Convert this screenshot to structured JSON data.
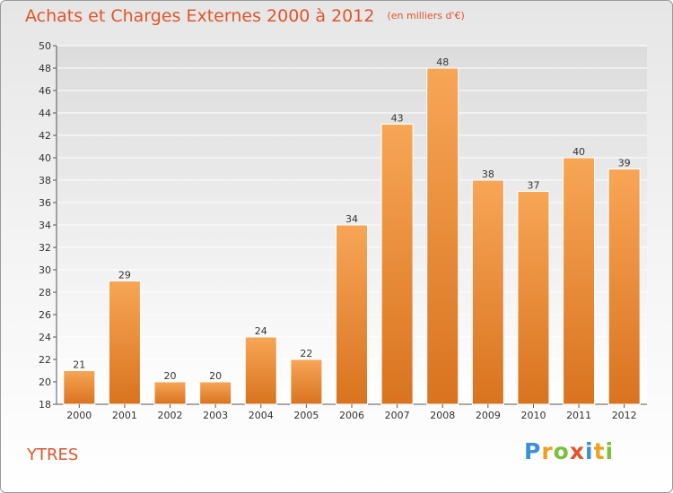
{
  "header": {
    "title": "Achats et Charges Externes 2000 à 2012",
    "unit": "(en milliers d'€)"
  },
  "footer": {
    "town": "YTRES",
    "logo_text": "Proxiti",
    "logo_letters": [
      {
        "ch": "P",
        "color": "#3a8fd6"
      },
      {
        "ch": "r",
        "color": "#f0a020"
      },
      {
        "ch": "o",
        "color": "#7cbf3a"
      },
      {
        "ch": "x",
        "color": "#e0552a"
      },
      {
        "ch": "i",
        "color": "#3a8fd6"
      },
      {
        "ch": "t",
        "color": "#f0a020"
      },
      {
        "ch": "i",
        "color": "#7cbf3a"
      }
    ]
  },
  "colors": {
    "bar_top": "#f7a656",
    "bar_bottom": "#d9731f",
    "title": "#e0552a"
  },
  "chart_data": {
    "type": "bar",
    "title": "Achats et Charges Externes 2000 à 2012",
    "ylabel": "(en milliers d'€)",
    "xlabel": "",
    "categories": [
      "2000",
      "2001",
      "2002",
      "2003",
      "2004",
      "2005",
      "2006",
      "2007",
      "2008",
      "2009",
      "2010",
      "2011",
      "2012"
    ],
    "values": [
      21,
      29,
      20,
      20,
      24,
      22,
      34,
      43,
      48,
      38,
      37,
      40,
      39
    ],
    "ylim": [
      18,
      50
    ],
    "ytick_step": 2,
    "grid": true,
    "legend": "none"
  }
}
